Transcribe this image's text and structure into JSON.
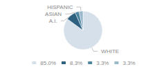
{
  "chart_data": {
    "type": "pie",
    "categories": [
      "WHITE",
      "A.I.",
      "ASIAN",
      "HISPANIC"
    ],
    "values": [
      85.0,
      8.3,
      3.3,
      3.3
    ],
    "value_labels": [
      "85.0%",
      "8.3%",
      "3.3%",
      "3.3%"
    ],
    "colors": [
      "#d6e0ea",
      "#2e6080",
      "#4d85a0",
      "#9ab8cc"
    ],
    "legend": "bottom"
  }
}
